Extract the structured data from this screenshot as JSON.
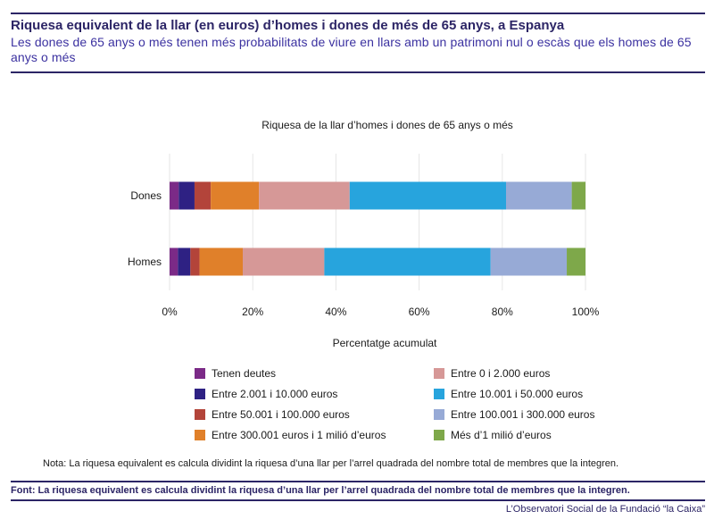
{
  "header": {
    "title": "Riquesa equivalent de la llar (en euros) d’homes i dones de més de 65 anys, a Espanya",
    "subtitle": "Les dones de 65 anys o més tenen més probabilitats de viure en llars amb un patrimoni nul o escàs que els homes de 65 anys o més"
  },
  "chart_data": {
    "type": "bar",
    "orientation": "horizontal",
    "stacked": true,
    "title": "Riquesa de la llar d’homes i dones de 65 anys o més",
    "xlabel": "Percentatge acumulat",
    "ylabel": "",
    "xlim": [
      0,
      100
    ],
    "xticks": [
      0,
      20,
      40,
      60,
      80,
      100
    ],
    "xtick_labels": [
      "0%",
      "20%",
      "40%",
      "60%",
      "80%",
      "100%"
    ],
    "grid": true,
    "legend_position": "bottom",
    "categories": [
      "Dones",
      "Homes"
    ],
    "series": [
      {
        "name": "Tenen deutes",
        "color": "#7b2a87",
        "values": [
          2.2,
          2.0
        ]
      },
      {
        "name": "Entre 2.001 i 10.000 euros",
        "color": "#2e2183",
        "values": [
          3.8,
          3.0
        ]
      },
      {
        "name": "Entre 50.001 i 100.000 euros",
        "color": "#b3443a",
        "values": [
          3.9,
          2.2
        ]
      },
      {
        "name": "Entre 300.001 euros i 1 milió d’euros",
        "color": "#e0802a",
        "values": [
          11.6,
          10.4
        ]
      },
      {
        "name": "Entre 0 i 2.000 euros",
        "color": "#d69897",
        "values": [
          21.8,
          19.6
        ]
      },
      {
        "name": "Entre 10.001 i 50.000 euros",
        "color": "#27a4dd",
        "values": [
          37.6,
          40.0
        ]
      },
      {
        "name": "Entre 100.001 i 300.000 euros",
        "color": "#97aad6",
        "values": [
          15.8,
          18.3
        ]
      },
      {
        "name": "Més d’1 milió d’euros",
        "color": "#7ea84a",
        "values": [
          3.3,
          4.5
        ]
      }
    ],
    "legend_left": [
      0,
      1,
      2,
      3
    ],
    "legend_right": [
      4,
      5,
      6,
      7
    ]
  },
  "footer": {
    "note": "Nota: La riquesa equivalent es calcula dividint la riquesa d’una llar per l’arrel quadrada del nombre total de membres que la integren.",
    "source": "Font: La riquesa equivalent es calcula dividint la riquesa d’una llar per l’arrel quadrada del nombre total de membres que la integren.",
    "credit": "L’Observatori Social de la Fundació “la Caixa”"
  }
}
